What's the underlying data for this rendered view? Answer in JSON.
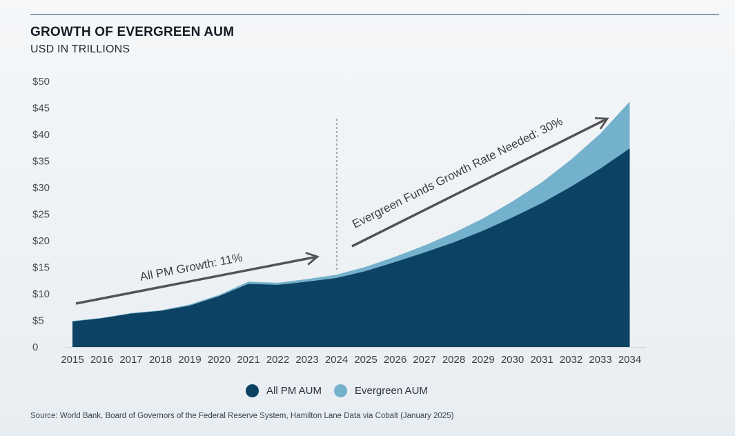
{
  "colors": {
    "all_pm": "#0c4263",
    "evergreen": "#74b1cc",
    "arrow": "#545454",
    "divider": "#8a8a8a"
  },
  "header": {
    "title": "GROWTH OF EVERGREEN AUM",
    "subtitle": "USD IN TRILLIONS"
  },
  "legend": {
    "all_pm": "All PM AUM",
    "evergreen": "Evergreen AUM"
  },
  "annotations": {
    "left_arrow": "All PM Growth: 11%",
    "right_arrow": "Evergreen Funds Growth Rate Needed: 30%"
  },
  "source": "Source: World Bank, Board of Governors of the Federal Reserve System, Hamilton Lane Data via Cobalt (January 2025)",
  "chart_data": {
    "type": "area",
    "stacked": true,
    "title": "GROWTH OF EVERGREEN AUM",
    "subtitle": "USD IN TRILLIONS",
    "x": [
      "2015",
      "2016",
      "2017",
      "2018",
      "2019",
      "2020",
      "2021",
      "2022",
      "2023",
      "2024",
      "2025",
      "2026",
      "2027",
      "2028",
      "2029",
      "2030",
      "2031",
      "2032",
      "2033",
      "2034"
    ],
    "series": [
      {
        "name": "All PM AUM",
        "values": [
          4.8,
          5.4,
          6.3,
          6.8,
          7.8,
          9.6,
          11.9,
          11.7,
          12.3,
          13.0,
          14.3,
          16.0,
          17.8,
          19.7,
          21.9,
          24.4,
          27.1,
          30.2,
          33.6,
          37.4
        ]
      },
      {
        "name": "Evergreen AUM",
        "values": [
          0.1,
          0.1,
          0.1,
          0.1,
          0.2,
          0.2,
          0.4,
          0.4,
          0.5,
          0.6,
          0.8,
          1.0,
          1.3,
          1.8,
          2.3,
          3.0,
          3.9,
          5.1,
          6.6,
          8.8
        ]
      }
    ],
    "yticks": [
      {
        "value": 0,
        "label": "0"
      },
      {
        "value": 5,
        "label": "$5"
      },
      {
        "value": 10,
        "label": "$10"
      },
      {
        "value": 15,
        "label": "$15"
      },
      {
        "value": 20,
        "label": "$20"
      },
      {
        "value": 25,
        "label": "$25"
      },
      {
        "value": 30,
        "label": "$30"
      },
      {
        "value": 35,
        "label": "$35"
      },
      {
        "value": 40,
        "label": "$40"
      },
      {
        "value": 45,
        "label": "$45"
      },
      {
        "value": 50,
        "label": "$50"
      }
    ],
    "ylim": [
      0,
      50
    ],
    "divider_after": "2024",
    "grid": false,
    "legend_position": "bottom-center"
  }
}
